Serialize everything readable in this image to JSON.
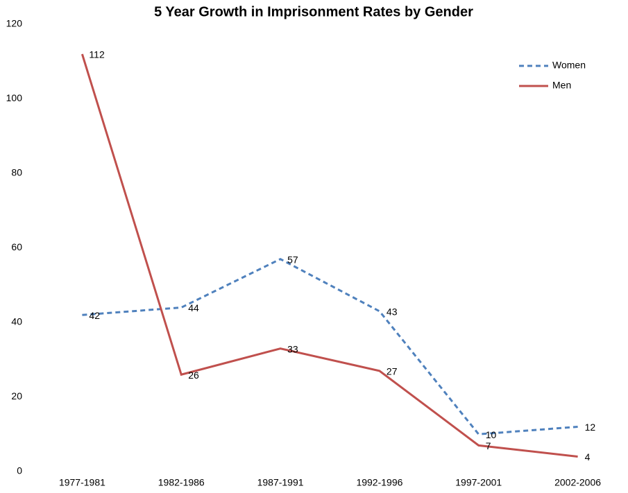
{
  "chart_data": {
    "type": "line",
    "title": "5 Year Growth in Imprisonment Rates by Gender",
    "categories": [
      "1977-1981",
      "1982-1986",
      "1987-1991",
      "1992-1996",
      "1997-2001",
      "2002-2006"
    ],
    "series": [
      {
        "name": "Women",
        "color": "#4f81bd",
        "dashed": true,
        "values": [
          42,
          44,
          57,
          43,
          10,
          12
        ]
      },
      {
        "name": "Men",
        "color": "#c0504d",
        "dashed": false,
        "values": [
          112,
          26,
          33,
          27,
          7,
          4
        ]
      }
    ],
    "ylim": [
      0,
      120
    ],
    "yticks": [
      0,
      20,
      40,
      60,
      80,
      100,
      120
    ],
    "grid": false,
    "legend": "top-right",
    "data_labels": true
  }
}
